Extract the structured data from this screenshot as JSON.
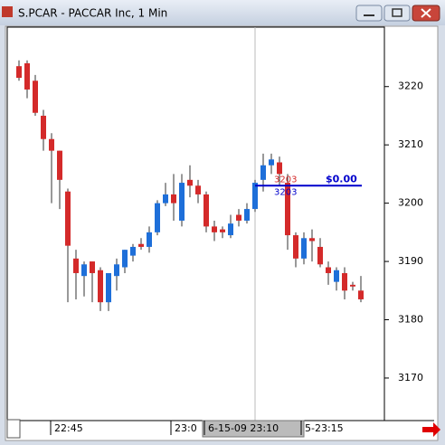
{
  "chart_data": {
    "type": "candlestick",
    "title": "S.PCAR - PACCAR Inc, 1 Min",
    "ylim": [
      3162.7,
      3230.2
    ],
    "yticks": [
      3170,
      3180,
      3190,
      3200,
      3210,
      3220
    ],
    "x_labels": [
      "22:45",
      "23:0",
      "6-15-09 23:10",
      "5-23:15"
    ],
    "up_color": "#1e6fd9",
    "down_color": "#d42a2a",
    "open": [
      3223.5,
      3224,
      3221,
      3215,
      3211,
      3209,
      3202,
      3190.5,
      3187.5,
      3190,
      3188.5,
      3183,
      3187.5,
      3189,
      3191,
      3193,
      3192.5,
      3195,
      3200,
      3201.5,
      3197,
      3204,
      3203,
      3201.5,
      3196,
      3195.5,
      3194.5,
      3198,
      3197,
      3199,
      3204,
      3206.5,
      3207,
      3203.5,
      3194.5,
      3190.5,
      3194,
      3192.5,
      3189,
      3186.5,
      3188,
      3186,
      3185
    ],
    "high": [
      3224.5,
      3224.5,
      3222,
      3216,
      3212,
      3209,
      3202.5,
      3192,
      3190,
      3190,
      3189,
      3187.5,
      3190.5,
      3192,
      3193,
      3194,
      3196,
      3200.5,
      3203.5,
      3205,
      3205,
      3206.5,
      3204,
      3202,
      3197,
      3196,
      3198,
      3199,
      3200,
      3204,
      3208.5,
      3208.5,
      3208,
      3205,
      3195,
      3195,
      3195.5,
      3194,
      3190,
      3189,
      3189,
      3186.5,
      3187.5
    ],
    "low": [
      3221,
      3218,
      3215,
      3209,
      3200,
      3199,
      3183,
      3183.5,
      3184,
      3183,
      3181.5,
      3181.5,
      3185,
      3188,
      3190,
      3192,
      3191.5,
      3194.5,
      3199.5,
      3197,
      3196,
      3201,
      3200,
      3195,
      3193.5,
      3194,
      3194,
      3196,
      3196.5,
      3198.5,
      3202,
      3205,
      3203,
      3192,
      3189,
      3189.5,
      3190,
      3189,
      3186,
      3185,
      3183.5,
      3185,
      3183
    ],
    "close": [
      3221.5,
      3219.5,
      3215.5,
      3211,
      3209,
      3204,
      3192.7,
      3188,
      3189.5,
      3188,
      3183,
      3188,
      3189.5,
      3192,
      3192.5,
      3192.5,
      3195,
      3200,
      3201.5,
      3200,
      3203.5,
      3203,
      3201.5,
      3196,
      3195,
      3195,
      3196.5,
      3197,
      3199,
      3203.5,
      3206.5,
      3207.5,
      3205,
      3194.5,
      3190.5,
      3194,
      3193.5,
      3189.5,
      3188,
      3188.5,
      3185,
      3185.7,
      3183.5
    ],
    "crosshair_index": 29,
    "order_line": {
      "value": 3203,
      "labels": [
        "3203",
        "3203"
      ],
      "pnl": "$0.00",
      "color": "#0000cc"
    }
  }
}
